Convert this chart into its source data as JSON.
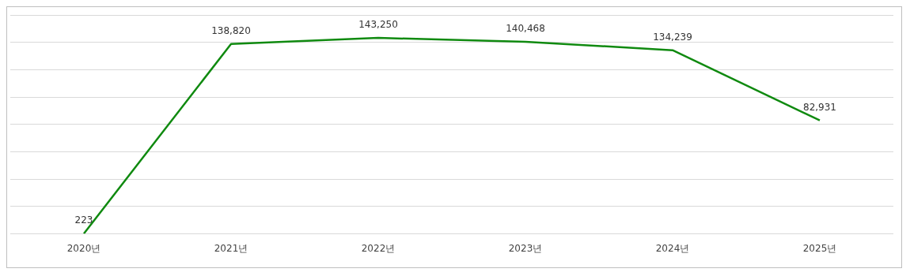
{
  "chart_data": {
    "type": "line",
    "categories": [
      "2020년",
      "2021년",
      "2022년",
      "2023년",
      "2024년",
      "2025년"
    ],
    "series": [
      {
        "color": "#108a10",
        "values": [
          223,
          138820,
          143250,
          140468,
          134239,
          82931
        ],
        "value_labels": [
          "223",
          "138,820",
          "143,250",
          "140,468",
          "134,239",
          "82,931"
        ]
      }
    ],
    "ylim": [
      0,
      160000
    ],
    "yticks": [
      {
        "value": 0,
        "label": null
      },
      {
        "value": 20000,
        "label": null
      },
      {
        "value": 40000,
        "label": null
      },
      {
        "value": 60000,
        "label": null
      },
      {
        "value": 80000,
        "label": null
      },
      {
        "value": 100000,
        "label": null
      },
      {
        "value": 120000,
        "label": null
      },
      {
        "value": 140000,
        "label": null
      },
      {
        "value": 160000,
        "label": null
      }
    ],
    "tick_labels": "x",
    "grid": "y",
    "legend": false,
    "marker": "none"
  }
}
